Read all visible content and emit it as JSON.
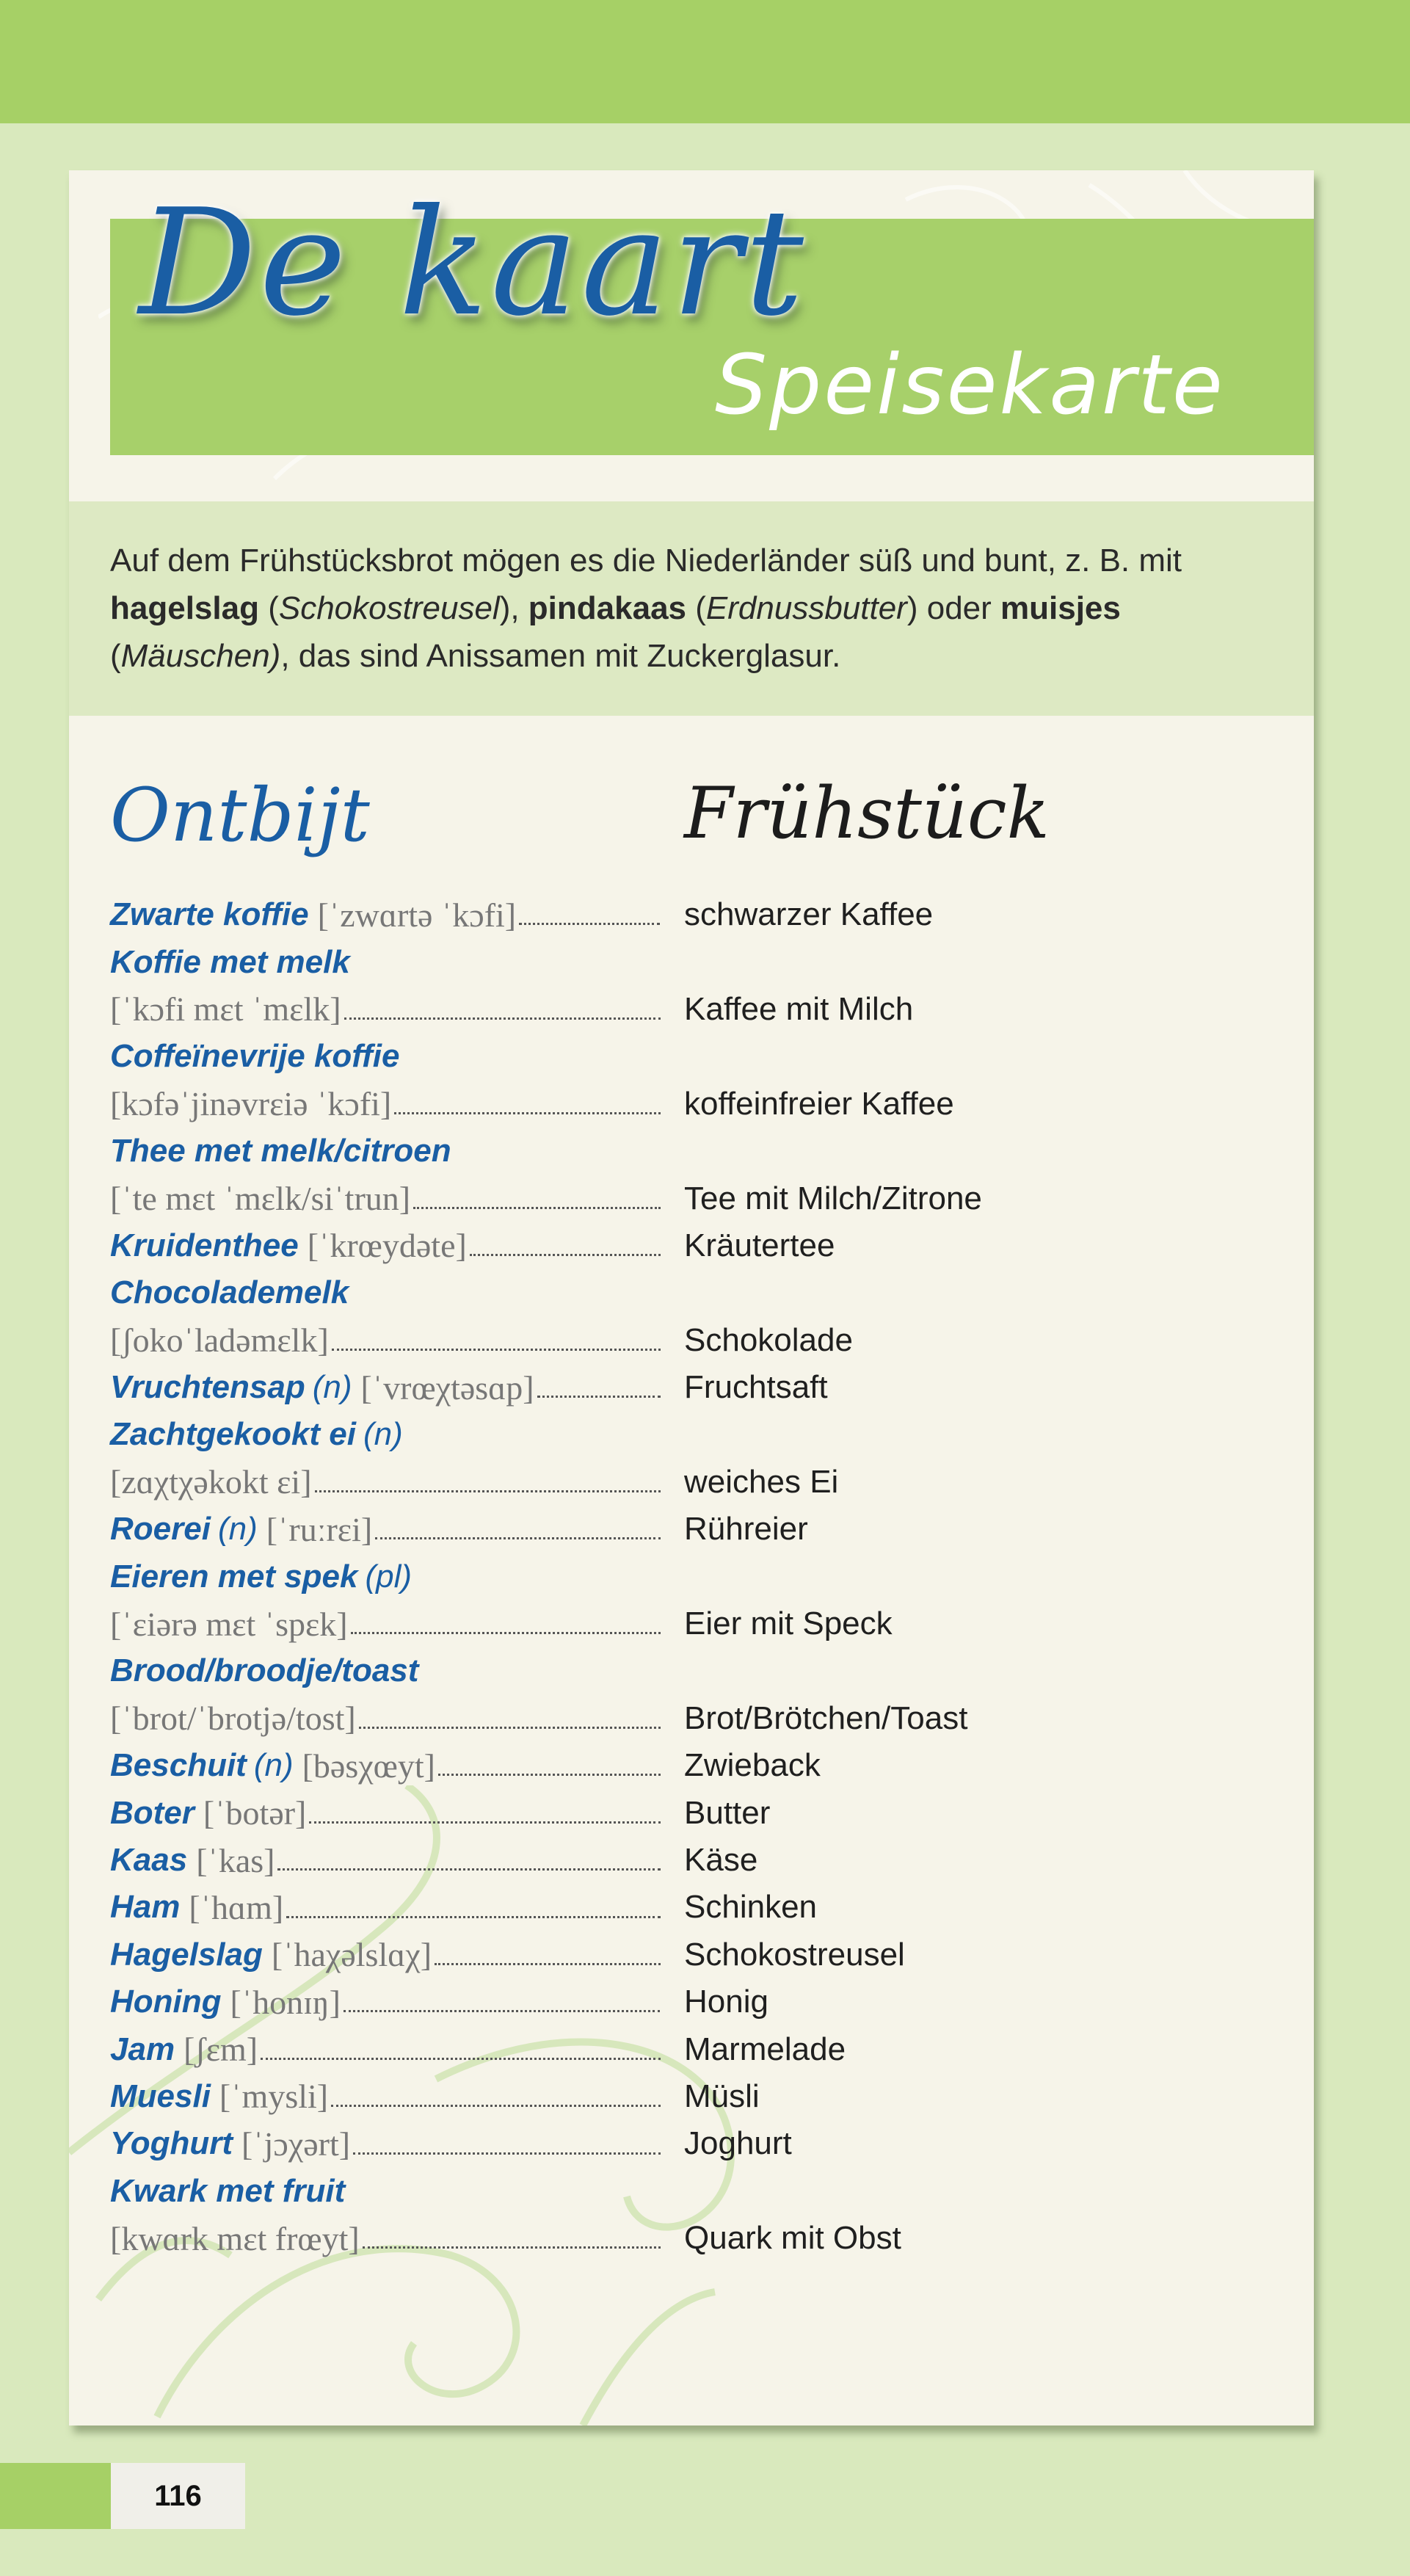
{
  "header": {
    "title": "De kaart",
    "subtitle": "Speisekarte"
  },
  "intro": {
    "parts": [
      {
        "t": "Auf dem Frühstücksbrot mögen es die Niederländer süß und bunt, z. B. mit ",
        "s": "normal"
      },
      {
        "t": "hagelslag",
        "s": "bold"
      },
      {
        "t": " (",
        "s": "normal"
      },
      {
        "t": "Schokostreusel",
        "s": "italic"
      },
      {
        "t": "), ",
        "s": "normal"
      },
      {
        "t": "pindakaas",
        "s": "bold"
      },
      {
        "t": " (",
        "s": "normal"
      },
      {
        "t": "Erdnussbutter",
        "s": "italic"
      },
      {
        "t": ") oder ",
        "s": "normal"
      },
      {
        "t": "muisjes",
        "s": "bold"
      },
      {
        "t": " (",
        "s": "normal"
      },
      {
        "t": "Mäuschen)",
        "s": "italic"
      },
      {
        "t": ", das sind Anissamen mit Zuckerglasur.",
        "s": "normal"
      }
    ]
  },
  "section": {
    "heading_nl": "Ontbijt",
    "heading_de": "Frühstück"
  },
  "entries": [
    {
      "nl": "Zwarte koffie",
      "ipa": "[ˈzwɑrtə ˈkɔfi]",
      "de": "schwarzer Kaffee"
    },
    {
      "nl": "Koffie met melk",
      "ipa": "[ˈkɔfi mɛt ˈmɛlk]",
      "de": "Kaffee mit Milch",
      "wrap": true
    },
    {
      "nl": "Coffeïnevrije koffie",
      "ipa": "[kɔfəˈjinəvrɛiə ˈkɔfi]",
      "de": "koffeinfreier Kaffee",
      "wrap": true
    },
    {
      "nl": "Thee met melk/citroen",
      "ipa": "[ˈte mɛt ˈmɛlk/siˈtrun]",
      "de": "Tee mit Milch/Zitrone",
      "wrap": true
    },
    {
      "nl": "Kruidenthee",
      "ipa": "[ˈkrœydəte]",
      "de": "Kräutertee"
    },
    {
      "nl": "Chocolademelk",
      "ipa": "[ʃokoˈladəmɛlk]",
      "de": "Schokolade",
      "wrap": true
    },
    {
      "nl": "Vruchtensap",
      "gram": "(n)",
      "ipa": "[ˈvrœχtəsɑp]",
      "de": "Fruchtsaft"
    },
    {
      "nl": "Zachtgekookt ei",
      "gram": "(n)",
      "ipa": "[zɑχtχəkokt ɛi]",
      "de": "weiches Ei",
      "wrap": true
    },
    {
      "nl": "Roerei",
      "gram": "(n)",
      "ipa": "[ˈruːrɛi]",
      "de": "Rühreier"
    },
    {
      "nl": "Eieren met spek",
      "gram": "(pl)",
      "ipa": "[ˈɛiərə mɛt ˈspɛk]",
      "de": "Eier mit Speck",
      "wrap": true
    },
    {
      "nl": "Brood/broodje/toast",
      "ipa": "[ˈbrot/ˈbrotjə/tost]",
      "de": "Brot/Brötchen/Toast",
      "wrap": true
    },
    {
      "nl": "Beschuit",
      "gram": "(n)",
      "ipa": "[bəsχœyt]",
      "de": "Zwieback"
    },
    {
      "nl": "Boter",
      "ipa": "[ˈbotər]",
      "de": "Butter"
    },
    {
      "nl": "Kaas",
      "ipa": "[ˈkas]",
      "de": "Käse"
    },
    {
      "nl": "Ham",
      "ipa": "[ˈhɑm]",
      "de": "Schinken"
    },
    {
      "nl": "Hagelslag",
      "ipa": "[ˈhaχəlslɑχ]",
      "de": "Schokostreusel"
    },
    {
      "nl": "Honing",
      "ipa": "[ˈhonɪŋ]",
      "de": "Honig"
    },
    {
      "nl": "Jam",
      "ipa": "[ʃɛm]",
      "de": "Marmelade"
    },
    {
      "nl": "Muesli",
      "ipa": "[ˈmysli]",
      "de": "Müsli"
    },
    {
      "nl": "Yoghurt",
      "ipa": "[ˈjɔχərt]",
      "de": "Joghurt"
    },
    {
      "nl": "Kwark met fruit",
      "ipa": "[kwɑrk mɛt frœyt]",
      "de": "Quark mit Obst",
      "wrap": true
    }
  ],
  "footer": {
    "page_number": "116"
  },
  "colors": {
    "accent_green": "#a6d066",
    "page_bg": "#d9e9bd",
    "card_bg": "#f6f4e9",
    "term_blue": "#1a5ea4"
  }
}
